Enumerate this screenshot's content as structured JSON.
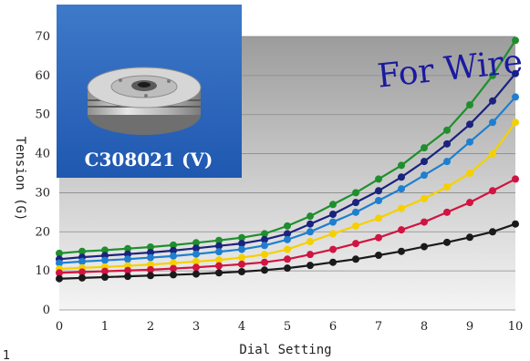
{
  "chart_data": {
    "type": "line",
    "xlabel": "Dial Setting",
    "ylabel": "Tension (G)",
    "x_ticks": [
      "0",
      "1",
      "2",
      "3",
      "4",
      "5",
      "6",
      "7",
      "8",
      "9",
      "10"
    ],
    "y_ticks": [
      "0",
      "10",
      "20",
      "30",
      "40",
      "50",
      "60",
      "70"
    ],
    "xlim": [
      0,
      10
    ],
    "ylim": [
      0,
      70
    ],
    "grid": "horizontal",
    "x": [
      0,
      0.5,
      1,
      1.5,
      2,
      2.5,
      3,
      3.5,
      4,
      4.5,
      5,
      5.5,
      6,
      6.5,
      7,
      7.5,
      8,
      8.5,
      9,
      9.5,
      10
    ],
    "series": [
      {
        "color": "#1f8f2e",
        "values": [
          14.5,
          15.0,
          15.3,
          15.7,
          16.1,
          16.6,
          17.2,
          17.8,
          18.5,
          19.5,
          21.5,
          24.0,
          27.0,
          30.0,
          33.5,
          37.0,
          41.5,
          46.0,
          52.5,
          60.0,
          69.0
        ]
      },
      {
        "color": "#1a237e",
        "values": [
          13.0,
          13.5,
          13.9,
          14.3,
          14.7,
          15.2,
          15.8,
          16.4,
          17.0,
          18.0,
          19.5,
          22.0,
          24.5,
          27.5,
          30.5,
          34.0,
          38.0,
          42.5,
          47.5,
          53.5,
          60.5
        ]
      },
      {
        "color": "#1e7fd0",
        "values": [
          12.0,
          12.4,
          12.7,
          13.0,
          13.4,
          13.8,
          14.3,
          14.9,
          15.5,
          16.5,
          18.0,
          20.0,
          22.5,
          25.0,
          28.0,
          31.0,
          34.5,
          38.0,
          43.0,
          48.0,
          54.5
        ]
      },
      {
        "color": "#f5d000",
        "values": [
          10.5,
          10.8,
          11.0,
          11.3,
          11.6,
          12.0,
          12.4,
          12.8,
          13.4,
          14.2,
          15.5,
          17.5,
          19.5,
          21.5,
          23.5,
          26.0,
          28.5,
          31.5,
          35.0,
          40.0,
          48.0
        ]
      },
      {
        "color": "#d11441",
        "values": [
          9.5,
          9.7,
          9.9,
          10.1,
          10.3,
          10.6,
          10.9,
          11.3,
          11.7,
          12.2,
          13.0,
          14.2,
          15.5,
          17.0,
          18.5,
          20.5,
          22.5,
          25.0,
          27.5,
          30.5,
          33.5
        ]
      },
      {
        "color": "#1a1a1a",
        "values": [
          8.0,
          8.2,
          8.4,
          8.6,
          8.8,
          9.0,
          9.2,
          9.5,
          9.8,
          10.2,
          10.7,
          11.4,
          12.2,
          13.0,
          14.0,
          15.0,
          16.2,
          17.3,
          18.6,
          20.0,
          22.0
        ]
      }
    ]
  },
  "overlay": {
    "title": "For Wire",
    "photo_caption": "C308021 (V)",
    "corner_mark": "1"
  }
}
